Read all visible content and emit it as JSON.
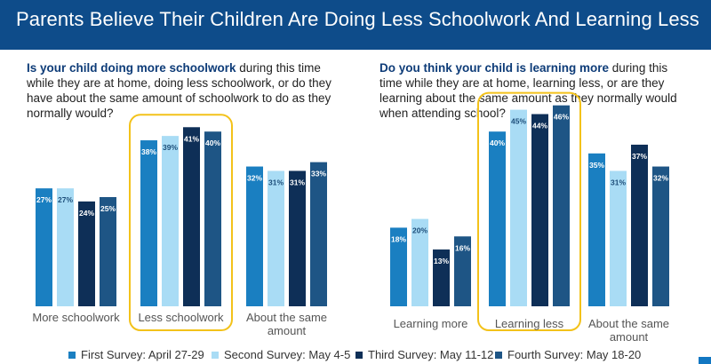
{
  "header": {
    "title": "Parents Believe Their Children Are Doing Less Schoolwork And Learning Less"
  },
  "colors": {
    "header_bg": "#0e4c8a",
    "highlight": "#f3c21a",
    "series": [
      "#1a7fc1",
      "#a9dcf5",
      "#0e2f57",
      "#1e5585"
    ]
  },
  "legend": [
    "First Survey: April 27-29",
    "Second Survey: May 4-5",
    "Third Survey: May 11-12",
    "Fourth Survey: May 18-20"
  ],
  "chart_data": [
    {
      "type": "bar",
      "question_bold": "Is your child doing more schoolwork",
      "question_rest": " during this time while they are at home, doing less schoolwork, or do they have about the same amount of schoolwork to do as they normally would?",
      "categories": [
        "More schoolwork",
        "Less schoolwork",
        "About the same amount"
      ],
      "highlighted_category": "Less schoolwork",
      "ylim": [
        0,
        50
      ],
      "series": [
        {
          "name": "First Survey: April 27-29",
          "values": [
            27,
            38,
            32
          ]
        },
        {
          "name": "Second Survey: May 4-5",
          "values": [
            27,
            39,
            31
          ]
        },
        {
          "name": "Third Survey: May 11-12",
          "values": [
            24,
            41,
            31
          ]
        },
        {
          "name": "Fourth Survey: May 18-20",
          "values": [
            25,
            40,
            33
          ]
        }
      ]
    },
    {
      "type": "bar",
      "question_bold": "Do you think your child is learning more",
      "question_rest": " during this time while they are at home, learning less, or are they learning about the same amount as they normally would when attending school?",
      "categories": [
        "Learning more",
        "Learning less",
        "About the same amount"
      ],
      "highlighted_category": "Learning less",
      "ylim": [
        0,
        50
      ],
      "series": [
        {
          "name": "First Survey: April 27-29",
          "values": [
            18,
            40,
            35
          ]
        },
        {
          "name": "Second Survey: May 4-5",
          "values": [
            20,
            45,
            31
          ]
        },
        {
          "name": "Third Survey: May 11-12",
          "values": [
            13,
            44,
            37
          ]
        },
        {
          "name": "Fourth Survey: May 18-20",
          "values": [
            16,
            46,
            32
          ]
        }
      ]
    }
  ]
}
